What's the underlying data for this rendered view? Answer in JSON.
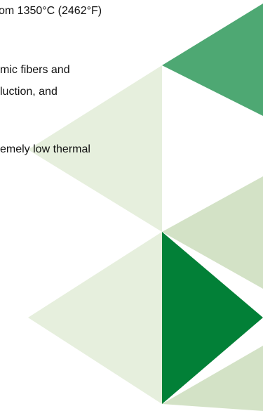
{
  "document": {
    "lines": [
      "om 1350°C (2462°F)",
      "mic fibers and",
      "luction, and",
      "emely low thermal"
    ]
  },
  "decoration": {
    "colors": {
      "dark_green": "#028037",
      "medium_green": "#4ea873",
      "light_green": "#d3e2c6",
      "pale_green": "#e6efdd"
    }
  }
}
